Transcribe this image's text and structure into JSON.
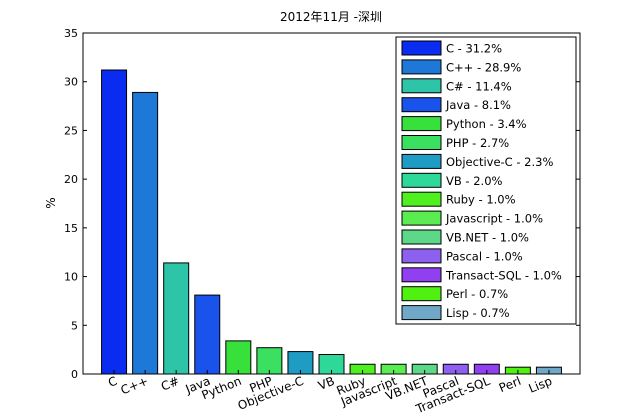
{
  "chart_data": {
    "type": "bar",
    "title": "2012年11月 -深圳",
    "xlabel": "",
    "ylabel": "%",
    "ylim": [
      0,
      35
    ],
    "yticks": [
      0,
      5,
      10,
      15,
      20,
      25,
      30,
      35
    ],
    "grid": false,
    "legend_position": "top-right",
    "categories": [
      "C",
      "C++",
      "C#",
      "Java",
      "Python",
      "PHP",
      "Objective-C",
      "VB",
      "Ruby",
      "Javascript",
      "VB.NET",
      "Pascal",
      "Transact-SQL",
      "Perl",
      "Lisp"
    ],
    "values": [
      31.2,
      28.9,
      11.4,
      8.1,
      3.4,
      2.7,
      2.3,
      2.0,
      1.0,
      1.0,
      1.0,
      1.0,
      1.0,
      0.7,
      0.7
    ],
    "colors": [
      "#0a2cf0",
      "#1e78d8",
      "#2ec4a8",
      "#1a52ec",
      "#38e03c",
      "#3ce060",
      "#1e9cc4",
      "#2ed898",
      "#50f020",
      "#5aec50",
      "#5cd888",
      "#8e60f0",
      "#9040f0",
      "#50f010",
      "#70a8c8"
    ],
    "legend": [
      "C - 31.2%",
      "C++ - 28.9%",
      "C# - 11.4%",
      "Java - 8.1%",
      "Python - 3.4%",
      "PHP - 2.7%",
      "Objective-C - 2.3%",
      "VB - 2.0%",
      "Ruby - 1.0%",
      "Javascript - 1.0%",
      "VB.NET - 1.0%",
      "Pascal - 1.0%",
      "Transact-SQL - 1.0%",
      "Perl - 0.7%",
      "Lisp - 0.7%"
    ]
  }
}
